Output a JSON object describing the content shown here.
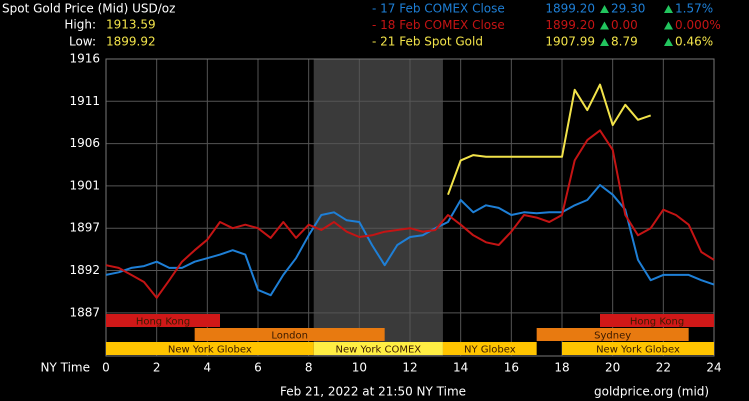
{
  "chart_data": {
    "type": "line",
    "title": "Spot Gold Price (Mid) USD/oz",
    "high_label": "High:",
    "high": "1913.59",
    "low_label": "Low:",
    "low": "1899.92",
    "x_label": "NY Time",
    "footer": "Feb 21, 2022 at 21:50 NY Time",
    "source": "goldprice.org (mid)",
    "xlim": [
      0,
      24
    ],
    "xticks": [
      0,
      2,
      4,
      6,
      8,
      10,
      12,
      14,
      16,
      18,
      20,
      22,
      24
    ],
    "ylim": [
      1882.1,
      1915.8
    ],
    "yticks": [
      {
        "value": 1915.8,
        "label": "1916"
      },
      {
        "value": 1911.0,
        "label": "1911"
      },
      {
        "value": 1906.2,
        "label": "1906"
      },
      {
        "value": 1901.4,
        "label": "1901"
      },
      {
        "value": 1896.6,
        "label": "1897"
      },
      {
        "value": 1891.8,
        "label": "1892"
      },
      {
        "value": 1887.0,
        "label": "1887"
      }
    ],
    "grid": true,
    "comex_shade": [
      8.2,
      13.3
    ],
    "x": [
      0,
      0.5,
      1,
      1.5,
      2,
      2.5,
      3,
      3.5,
      4,
      4.5,
      5,
      5.5,
      6,
      6.5,
      7,
      7.5,
      8,
      8.5,
      9,
      9.5,
      10,
      10.5,
      11,
      11.5,
      12,
      12.5,
      13,
      13.5,
      14,
      14.5,
      15,
      15.5,
      16,
      16.5,
      17,
      17.5,
      18,
      18.5,
      19,
      19.5,
      20,
      20.5,
      21,
      21.5,
      22,
      22.5,
      23,
      23.5,
      24
    ],
    "series": [
      {
        "name": "- 17 Feb COMEX Close",
        "color": "#1e7fd6",
        "close": "1899.20",
        "change": "29.30",
        "change_pct": "1.57%",
        "values": [
          1891.3,
          1891.6,
          1892.1,
          1892.3,
          1892.8,
          1892.1,
          1892.1,
          1892.8,
          1893.2,
          1893.6,
          1894.1,
          1893.6,
          1889.6,
          1889.0,
          1891.3,
          1893.2,
          1895.8,
          1898.1,
          1898.4,
          1897.5,
          1897.3,
          1894.7,
          1892.4,
          1894.7,
          1895.6,
          1895.8,
          1896.6,
          1897.3,
          1899.8,
          1898.4,
          1899.2,
          1898.9,
          1898.1,
          1898.4,
          1898.3,
          1898.4,
          1898.4,
          1899.2,
          1899.8,
          1901.5,
          1900.4,
          1898.7,
          1893.0,
          1890.7,
          1891.3,
          1891.3,
          1891.3,
          1890.7,
          1890.2
        ]
      },
      {
        "name": "- 18 Feb COMEX Close",
        "color": "#c41414",
        "close": "1899.20",
        "change": "0.00",
        "change_pct": "0.000%",
        "values": [
          1892.4,
          1892.1,
          1891.3,
          1890.5,
          1888.7,
          1890.7,
          1892.8,
          1894.1,
          1895.3,
          1897.3,
          1896.6,
          1897.0,
          1896.6,
          1895.5,
          1897.3,
          1895.5,
          1897.0,
          1896.4,
          1897.3,
          1896.2,
          1895.6,
          1895.8,
          1896.2,
          1896.4,
          1896.6,
          1896.2,
          1896.4,
          1898.1,
          1897.0,
          1895.8,
          1895.0,
          1894.7,
          1896.2,
          1898.1,
          1897.8,
          1897.3,
          1898.1,
          1904.3,
          1906.6,
          1907.7,
          1905.5,
          1898.1,
          1895.8,
          1896.6,
          1898.7,
          1898.1,
          1897.0,
          1893.9,
          1893.0
        ]
      },
      {
        "name": "- 21 Feb Spot Gold",
        "color": "#f2e34a",
        "close": "1907.99",
        "change": "8.79",
        "change_pct": "0.46%",
        "values": [
          null,
          null,
          null,
          null,
          null,
          null,
          null,
          null,
          null,
          null,
          null,
          null,
          null,
          null,
          null,
          null,
          null,
          null,
          null,
          null,
          null,
          null,
          null,
          null,
          null,
          null,
          null,
          1900.4,
          1904.3,
          1904.9,
          1904.7,
          1904.7,
          1904.7,
          1904.7,
          1904.7,
          1904.7,
          1904.7,
          1912.3,
          1910.0,
          1912.9,
          1908.3,
          1910.6,
          1908.9,
          1909.4,
          null,
          null,
          null,
          null,
          null
        ]
      }
    ],
    "sessions": [
      {
        "label": "Hong Kong",
        "start": 0,
        "end": 4.5,
        "row": 0,
        "color": "#d01818"
      },
      {
        "label": "Hong Kong",
        "start": 19.5,
        "end": 24,
        "row": 0,
        "color": "#d01818"
      },
      {
        "label": "London",
        "start": 3.5,
        "end": 11,
        "row": 1,
        "color": "#e87a10"
      },
      {
        "label": "Sydney",
        "start": 17,
        "end": 23,
        "row": 1,
        "color": "#e87a10"
      },
      {
        "label": "New York Globex",
        "start": 0,
        "end": 8.2,
        "row": 2,
        "color": "#ffc400"
      },
      {
        "label": "New York COMEX",
        "start": 8.2,
        "end": 13.3,
        "row": 2,
        "color": "#ffee44"
      },
      {
        "label": "NY Globex",
        "start": 13.3,
        "end": 17,
        "row": 2,
        "color": "#ffc400"
      },
      {
        "label": "New York Globex",
        "start": 18,
        "end": 24,
        "row": 2,
        "color": "#ffc400"
      }
    ]
  }
}
